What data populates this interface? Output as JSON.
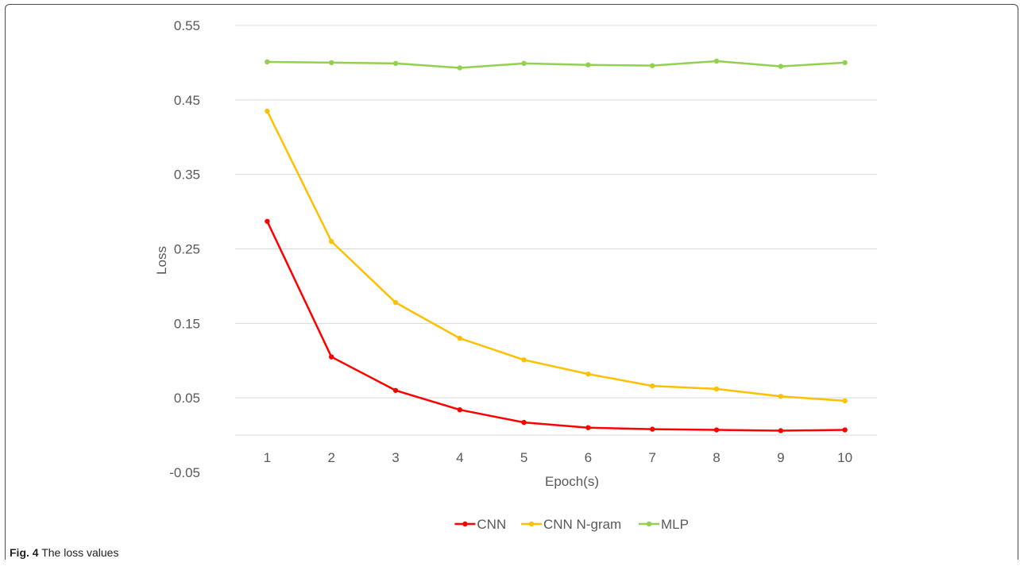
{
  "caption": {
    "label": "Fig. 4",
    "text": "The loss values"
  },
  "chart_data": {
    "type": "line",
    "title": "",
    "xlabel": "Epoch(s)",
    "ylabel": "Loss",
    "categories": [
      "1",
      "2",
      "3",
      "4",
      "5",
      "6",
      "7",
      "8",
      "9",
      "10"
    ],
    "ylim": [
      -0.05,
      0.55
    ],
    "yticks": [
      -0.05,
      0.05,
      0.15,
      0.25,
      0.35,
      0.45,
      0.55
    ],
    "ytick_labels": [
      "-0.05",
      "0.05",
      "0.15",
      "0.25",
      "0.35",
      "0.45",
      "0.55"
    ],
    "grid": true,
    "legend_position": "bottom",
    "series": [
      {
        "name": "CNN",
        "color": "#ff0000",
        "values": [
          0.287,
          0.105,
          0.06,
          0.034,
          0.017,
          0.01,
          0.008,
          0.007,
          0.006,
          0.007
        ]
      },
      {
        "name": "CNN N-gram",
        "color": "#ffc000",
        "values": [
          0.435,
          0.26,
          0.178,
          0.13,
          0.101,
          0.082,
          0.066,
          0.062,
          0.052,
          0.046
        ]
      },
      {
        "name": "MLP",
        "color": "#92d050",
        "values": [
          0.501,
          0.5,
          0.499,
          0.493,
          0.499,
          0.497,
          0.496,
          0.502,
          0.495,
          0.5
        ]
      }
    ]
  }
}
